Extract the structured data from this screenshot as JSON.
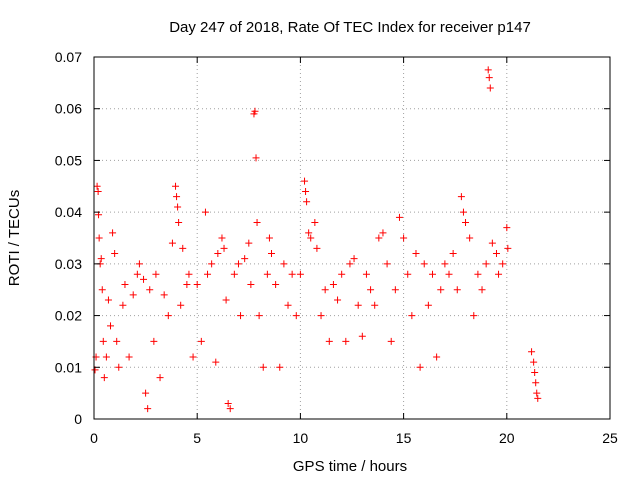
{
  "chart_data": {
    "type": "scatter",
    "title": "Day 247 of 2018, Rate Of TEC Index for receiver p147",
    "xlabel": "GPS time / hours",
    "ylabel": "ROTI / TECUs",
    "xlim": [
      0,
      25
    ],
    "ylim": [
      0,
      0.07
    ],
    "xticks": [
      0,
      5,
      10,
      15,
      20,
      25
    ],
    "yticks": [
      0,
      0.01,
      0.02,
      0.03,
      0.04,
      0.05,
      0.06,
      0.07
    ],
    "xtick_labels": [
      "0",
      "5",
      "10",
      "15",
      "20",
      "25"
    ],
    "ytick_labels": [
      "0",
      "0.01",
      "0.02",
      "0.03",
      "0.04",
      "0.05",
      "0.06",
      "0.07"
    ],
    "grid": true,
    "marker": "+",
    "color": "#ff0000",
    "series": [
      {
        "name": "ROTI",
        "points": [
          [
            0.05,
            0.0095
          ],
          [
            0.1,
            0.012
          ],
          [
            0.15,
            0.045
          ],
          [
            0.2,
            0.044
          ],
          [
            0.22,
            0.0395
          ],
          [
            0.25,
            0.035
          ],
          [
            0.3,
            0.03
          ],
          [
            0.35,
            0.031
          ],
          [
            0.4,
            0.025
          ],
          [
            0.45,
            0.015
          ],
          [
            0.5,
            0.008
          ],
          [
            0.6,
            0.012
          ],
          [
            0.7,
            0.023
          ],
          [
            0.8,
            0.018
          ],
          [
            0.9,
            0.036
          ],
          [
            1.0,
            0.032
          ],
          [
            1.1,
            0.015
          ],
          [
            1.2,
            0.01
          ],
          [
            1.4,
            0.022
          ],
          [
            1.5,
            0.026
          ],
          [
            1.7,
            0.012
          ],
          [
            1.9,
            0.024
          ],
          [
            2.1,
            0.028
          ],
          [
            2.2,
            0.03
          ],
          [
            2.4,
            0.027
          ],
          [
            2.5,
            0.005
          ],
          [
            2.6,
            0.002
          ],
          [
            2.7,
            0.025
          ],
          [
            2.9,
            0.015
          ],
          [
            3.0,
            0.028
          ],
          [
            3.2,
            0.008
          ],
          [
            3.4,
            0.024
          ],
          [
            3.6,
            0.02
          ],
          [
            3.8,
            0.034
          ],
          [
            3.95,
            0.045
          ],
          [
            4.0,
            0.043
          ],
          [
            4.05,
            0.041
          ],
          [
            4.1,
            0.038
          ],
          [
            4.2,
            0.022
          ],
          [
            4.3,
            0.033
          ],
          [
            4.5,
            0.026
          ],
          [
            4.6,
            0.028
          ],
          [
            4.8,
            0.012
          ],
          [
            5.0,
            0.026
          ],
          [
            5.2,
            0.015
          ],
          [
            5.4,
            0.04
          ],
          [
            5.5,
            0.028
          ],
          [
            5.7,
            0.03
          ],
          [
            5.9,
            0.011
          ],
          [
            6.0,
            0.032
          ],
          [
            6.2,
            0.035
          ],
          [
            6.3,
            0.033
          ],
          [
            6.4,
            0.023
          ],
          [
            6.5,
            0.003
          ],
          [
            6.6,
            0.002
          ],
          [
            6.8,
            0.028
          ],
          [
            7.0,
            0.03
          ],
          [
            7.1,
            0.02
          ],
          [
            7.3,
            0.031
          ],
          [
            7.5,
            0.034
          ],
          [
            7.6,
            0.026
          ],
          [
            7.75,
            0.059
          ],
          [
            7.8,
            0.0595
          ],
          [
            7.85,
            0.0505
          ],
          [
            7.9,
            0.038
          ],
          [
            8.0,
            0.02
          ],
          [
            8.2,
            0.01
          ],
          [
            8.4,
            0.028
          ],
          [
            8.5,
            0.035
          ],
          [
            8.6,
            0.032
          ],
          [
            8.8,
            0.026
          ],
          [
            9.0,
            0.01
          ],
          [
            9.2,
            0.03
          ],
          [
            9.4,
            0.022
          ],
          [
            9.6,
            0.028
          ],
          [
            9.8,
            0.02
          ],
          [
            10.0,
            0.028
          ],
          [
            10.2,
            0.046
          ],
          [
            10.25,
            0.044
          ],
          [
            10.3,
            0.042
          ],
          [
            10.4,
            0.036
          ],
          [
            10.5,
            0.035
          ],
          [
            10.7,
            0.038
          ],
          [
            10.8,
            0.033
          ],
          [
            11.0,
            0.02
          ],
          [
            11.2,
            0.025
          ],
          [
            11.4,
            0.015
          ],
          [
            11.6,
            0.026
          ],
          [
            11.8,
            0.023
          ],
          [
            12.0,
            0.028
          ],
          [
            12.2,
            0.015
          ],
          [
            12.4,
            0.03
          ],
          [
            12.6,
            0.031
          ],
          [
            12.8,
            0.022
          ],
          [
            13.0,
            0.016
          ],
          [
            13.2,
            0.028
          ],
          [
            13.4,
            0.025
          ],
          [
            13.6,
            0.022
          ],
          [
            13.8,
            0.035
          ],
          [
            14.0,
            0.036
          ],
          [
            14.2,
            0.03
          ],
          [
            14.4,
            0.015
          ],
          [
            14.6,
            0.025
          ],
          [
            14.8,
            0.039
          ],
          [
            15.0,
            0.035
          ],
          [
            15.2,
            0.028
          ],
          [
            15.4,
            0.02
          ],
          [
            15.6,
            0.032
          ],
          [
            15.8,
            0.01
          ],
          [
            16.0,
            0.03
          ],
          [
            16.2,
            0.022
          ],
          [
            16.4,
            0.028
          ],
          [
            16.6,
            0.012
          ],
          [
            16.8,
            0.025
          ],
          [
            17.0,
            0.03
          ],
          [
            17.2,
            0.028
          ],
          [
            17.4,
            0.032
          ],
          [
            17.6,
            0.025
          ],
          [
            17.8,
            0.043
          ],
          [
            17.9,
            0.04
          ],
          [
            18.0,
            0.038
          ],
          [
            18.2,
            0.035
          ],
          [
            18.4,
            0.02
          ],
          [
            18.6,
            0.028
          ],
          [
            18.8,
            0.025
          ],
          [
            19.0,
            0.03
          ],
          [
            19.1,
            0.0675
          ],
          [
            19.15,
            0.066
          ],
          [
            19.2,
            0.064
          ],
          [
            19.3,
            0.034
          ],
          [
            19.5,
            0.032
          ],
          [
            19.6,
            0.028
          ],
          [
            19.8,
            0.03
          ],
          [
            20.0,
            0.037
          ],
          [
            20.05,
            0.033
          ],
          [
            21.2,
            0.013
          ],
          [
            21.3,
            0.011
          ],
          [
            21.35,
            0.009
          ],
          [
            21.4,
            0.007
          ],
          [
            21.45,
            0.005
          ],
          [
            21.5,
            0.004
          ]
        ]
      }
    ]
  }
}
